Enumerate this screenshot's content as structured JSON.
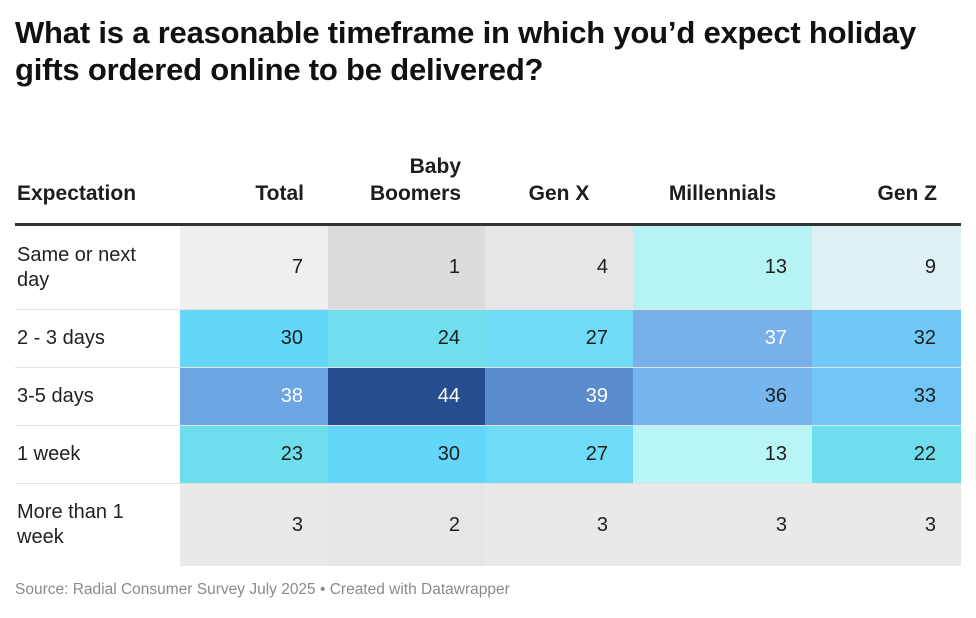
{
  "title": "What is a reasonable timeframe in which you’d expect holiday gifts ordered online to be delivered?",
  "source": "Source: Radial Consumer Survey July 2025 • Created with Datawrapper",
  "chart_data": {
    "type": "table",
    "row_header": "Expectation",
    "columns": [
      "Total",
      "Baby Boomers",
      "Gen X",
      "Millennials",
      "Gen Z"
    ],
    "rows": [
      {
        "label": "Same or next day",
        "values": [
          7,
          1,
          4,
          13,
          9
        ]
      },
      {
        "label": "2 - 3 days",
        "values": [
          30,
          24,
          27,
          37,
          32
        ]
      },
      {
        "label": "3-5 days",
        "values": [
          38,
          44,
          39,
          36,
          33
        ]
      },
      {
        "label": "1 week",
        "values": [
          23,
          30,
          27,
          13,
          22
        ]
      },
      {
        "label": "More than 1 week",
        "values": [
          3,
          2,
          3,
          3,
          3
        ]
      }
    ],
    "cell_colors": [
      [
        "#efefef",
        "#dcdcdc",
        "#e6e6e6",
        "#b5f3f5",
        "#def1f4"
      ],
      [
        "#64d6f9",
        "#70deec",
        "#6fdbf6",
        "#78b0ea",
        "#70c9f6"
      ],
      [
        "#6ea6e3",
        "#264e8e",
        "#5b8ccc",
        "#75b6ef",
        "#71c6f5"
      ],
      [
        "#6fdeec",
        "#64d6f9",
        "#6fdbf6",
        "#b7f5f6",
        "#6fdeec"
      ],
      [
        "#e9e9e9",
        "#e6e6e6",
        "#e9e9e9",
        "#e9e9e9",
        "#e9e9e9"
      ]
    ],
    "text_colors": [
      [
        "#1d1d1d",
        "#1d1d1d",
        "#1d1d1d",
        "#1d1d1d",
        "#1d1d1d"
      ],
      [
        "#1d1d1d",
        "#1d1d1d",
        "#1d1d1d",
        "#ffffff",
        "#1d1d1d"
      ],
      [
        "#ffffff",
        "#ffffff",
        "#ffffff",
        "#1d1d1d",
        "#1d1d1d"
      ],
      [
        "#1d1d1d",
        "#1d1d1d",
        "#1d1d1d",
        "#1d1d1d",
        "#1d1d1d"
      ],
      [
        "#1d1d1d",
        "#1d1d1d",
        "#1d1d1d",
        "#1d1d1d",
        "#1d1d1d"
      ]
    ]
  }
}
